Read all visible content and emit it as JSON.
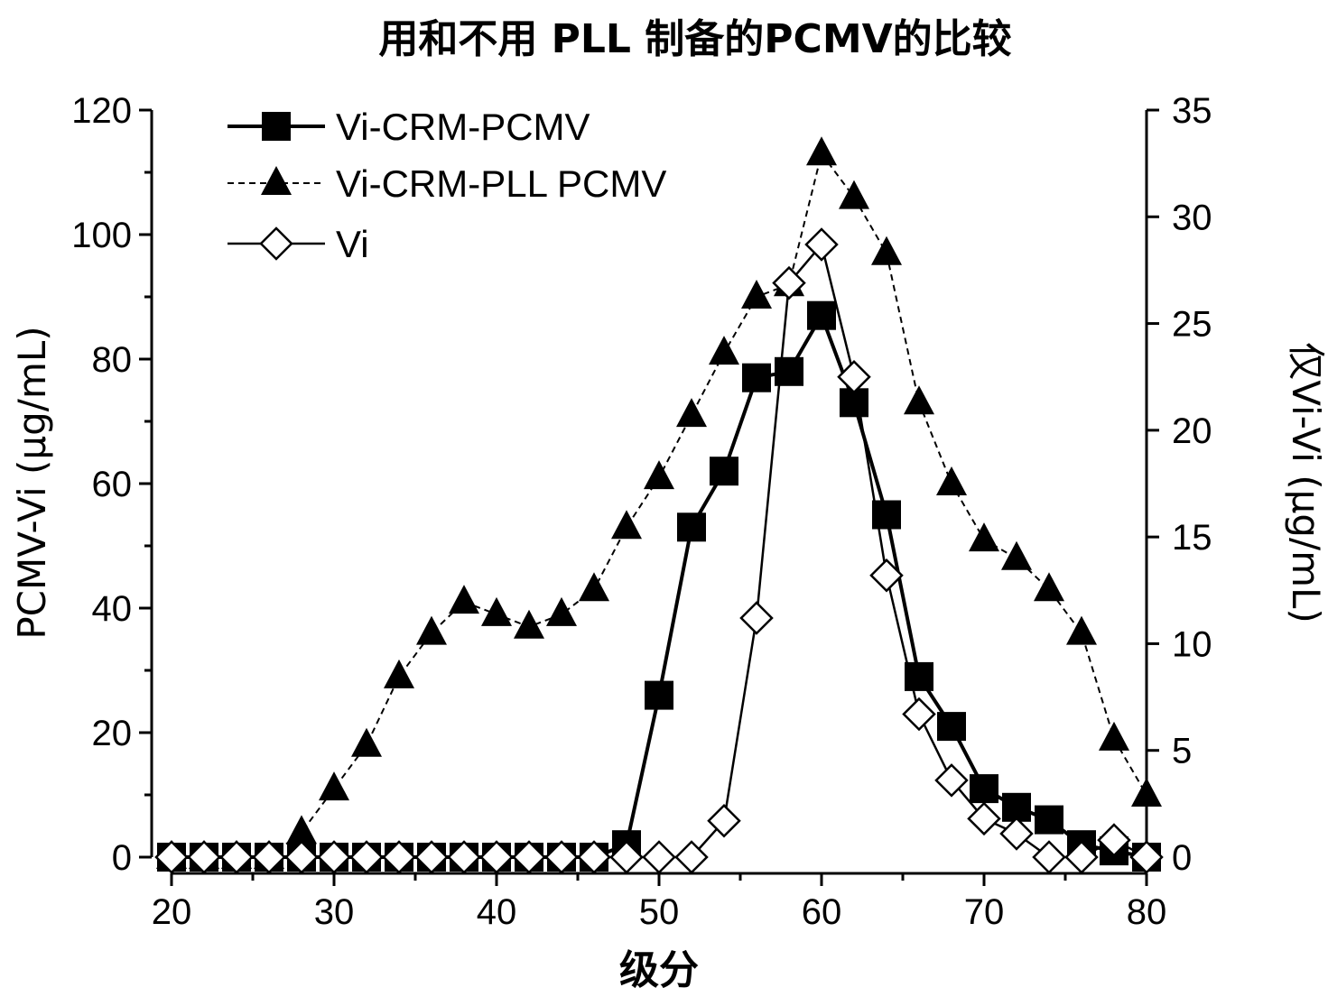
{
  "chart_data": {
    "type": "line",
    "title": "用和不用 PLL 制备的PCMV的比较",
    "xlabel": "级分",
    "ylabel": "PCMV-Vi (μg/mL)",
    "y2label": "仅Vi-Vi (μg/mL)",
    "xlim": [
      20,
      80
    ],
    "ylim": [
      0,
      120
    ],
    "y2lim": [
      0,
      35
    ],
    "xticks": [
      20,
      30,
      40,
      50,
      60,
      70,
      80
    ],
    "yticks": [
      0,
      20,
      40,
      60,
      80,
      100,
      120
    ],
    "y2ticks": [
      0,
      5,
      10,
      15,
      20,
      25,
      30,
      35
    ],
    "legend_position": "top-left",
    "grid": false,
    "series": [
      {
        "name": "Vi-CRM-PCMV",
        "axis": "left",
        "marker": "filled-square",
        "line": "solid",
        "color": "#000000",
        "x": [
          20,
          22,
          24,
          26,
          28,
          30,
          32,
          34,
          36,
          38,
          40,
          42,
          44,
          46,
          48,
          50,
          52,
          54,
          56,
          58,
          60,
          62,
          64,
          66,
          68,
          70,
          72,
          74,
          76,
          78,
          80
        ],
        "values": [
          0,
          0,
          0,
          0,
          0,
          0,
          0,
          0,
          0,
          0,
          0,
          0,
          0,
          0,
          2,
          26,
          53,
          62,
          77,
          78,
          87,
          73,
          55,
          29,
          21,
          11,
          8,
          6,
          2,
          1,
          0
        ]
      },
      {
        "name": "Vi-CRM-PLL PCMV",
        "axis": "left",
        "marker": "filled-triangle",
        "line": "dashed",
        "color": "#000000",
        "x": [
          20,
          22,
          24,
          26,
          28,
          30,
          32,
          34,
          36,
          38,
          40,
          42,
          44,
          46,
          48,
          50,
          52,
          54,
          56,
          58,
          60,
          62,
          64,
          66,
          68,
          70,
          72,
          74,
          76,
          78,
          80
        ],
        "values": [
          0,
          0,
          0,
          0,
          4,
          11,
          18,
          29,
          36,
          41,
          39,
          37,
          39,
          43,
          53,
          61,
          71,
          81,
          90,
          92,
          113,
          106,
          97,
          73,
          60,
          51,
          48,
          43,
          36,
          19,
          10
        ]
      },
      {
        "name": "Vi",
        "axis": "right",
        "marker": "open-diamond",
        "line": "solid",
        "color": "#000000",
        "x": [
          20,
          22,
          24,
          26,
          28,
          30,
          32,
          34,
          36,
          38,
          40,
          42,
          44,
          46,
          48,
          50,
          52,
          54,
          56,
          58,
          60,
          62,
          64,
          66,
          68,
          70,
          72,
          74,
          76,
          78,
          80
        ],
        "values": [
          0,
          0,
          0,
          0,
          0,
          0,
          0,
          0,
          0,
          0,
          0,
          0,
          0,
          0,
          0,
          0,
          0,
          1.7,
          11.2,
          26.9,
          28.7,
          22.5,
          13.2,
          6.7,
          3.6,
          1.8,
          1.1,
          0,
          0,
          0.8,
          0
        ]
      }
    ]
  }
}
